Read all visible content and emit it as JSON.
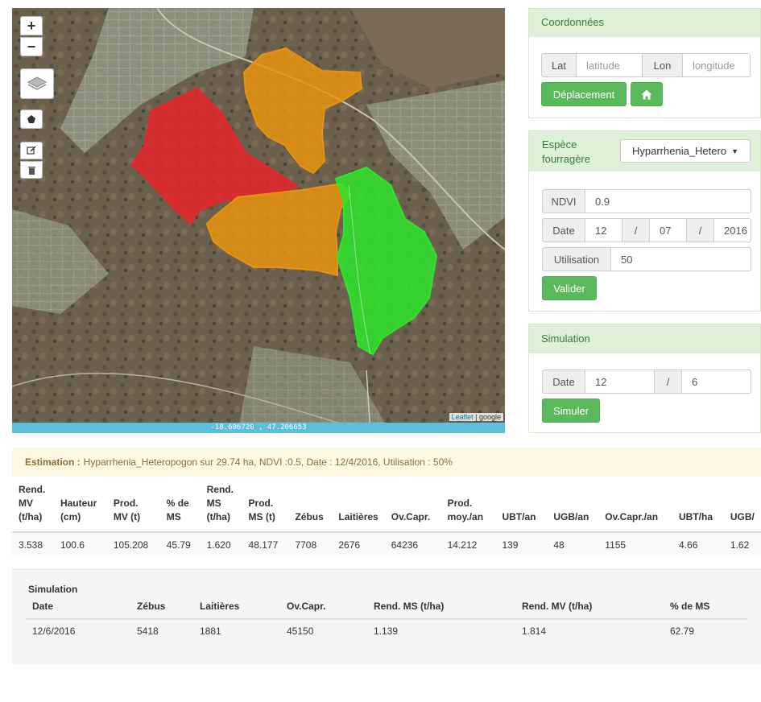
{
  "map": {
    "zoom_in_label": "+",
    "zoom_out_label": "−",
    "coordinates_text": "-18.606720 , 47.206653",
    "attribution": {
      "leaflet": "Leaflet",
      "separator": " | ",
      "provider": "google"
    },
    "polygon_colors": {
      "red": "#e8262b",
      "orange": "#e8930f",
      "green": "#2ee52a"
    }
  },
  "coordonnees": {
    "title": "Coordonnées",
    "lat_label": "Lat",
    "lat_placeholder": "latitude",
    "lon_label": "Lon",
    "lon_placeholder": "longitude",
    "move_button": "Déplacement",
    "home_icon": "home-icon"
  },
  "espece": {
    "label_line1": "Espèce",
    "label_line2": "fourragère",
    "selected": "Hyparrhenia_Heteropogon",
    "ndvi_label": "NDVI",
    "ndvi_value": "0.9",
    "date_label": "Date",
    "date_day": "12",
    "date_sep": "/",
    "date_month": "07",
    "date_year": "2016",
    "utilisation_label": "Utilisation",
    "utilisation_value": "50",
    "validate_button": "Valider"
  },
  "simulation_panel": {
    "title": "Simulation",
    "date_label": "Date",
    "day": "12",
    "sep": "/",
    "month": "6",
    "simulate_button": "Simuler"
  },
  "estimation": {
    "label": "Estimation :",
    "text": "Hyparrhenia_Heteropogon sur 29.74 ha, NDVI :0.5, Date : 12/4/2016, Utilisation : 50%"
  },
  "results": {
    "headers": [
      [
        "Rend.",
        "MV",
        "(t/ha)"
      ],
      [
        "Hauteur",
        "(cm)"
      ],
      [
        "Prod.",
        "MV (t)"
      ],
      [
        "% de",
        "MS"
      ],
      [
        "Rend.",
        "MS",
        "(t/ha)"
      ],
      [
        "Prod.",
        "MS (t)"
      ],
      [
        "Zébus"
      ],
      [
        "Laitières"
      ],
      [
        "Ov.Capr."
      ],
      [
        "Prod.",
        "moy./an"
      ],
      [
        "UBT/an"
      ],
      [
        "UGB/an"
      ],
      [
        "Ov.Capr./an"
      ],
      [
        "UBT/ha"
      ],
      [
        "UGB/"
      ]
    ],
    "row": [
      "3.538",
      "100.6",
      "105.208",
      "45.79",
      "1.620",
      "48.177",
      "7708",
      "2676",
      "64236",
      "14.212",
      "139",
      "48",
      "1155",
      "4.66",
      "1.62"
    ]
  },
  "simulation_results": {
    "title": "Simulation",
    "headers": [
      "Date",
      "Zébus",
      "Laitières",
      "Ov.Capr.",
      "Rend. MS (t/ha)",
      "Rend. MV (t/ha)",
      "% de MS"
    ],
    "row": [
      "12/6/2016",
      "5418",
      "1881",
      "45150",
      "1.139",
      "1.814",
      "62.79"
    ]
  }
}
